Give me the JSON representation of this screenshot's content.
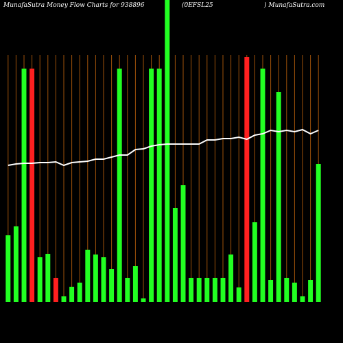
{
  "chart_data": {
    "type": "bar",
    "title": "MunafaSutra  Money Flow  Charts for 938896",
    "subtitle": "(0EFSL25",
    "source": ") MunafaSutra.com",
    "categories": [
      null,
      null,
      null,
      null,
      null,
      null,
      null,
      null,
      null,
      null,
      null,
      null,
      null,
      null,
      null,
      null,
      null,
      null,
      null,
      null,
      null,
      null,
      null,
      null,
      null,
      null,
      null,
      null,
      null,
      null,
      null,
      null,
      null,
      null,
      null,
      null,
      null,
      null,
      null,
      null
    ],
    "ylim": [
      0,
      440
    ],
    "series": [
      {
        "name": "Money Flow",
        "type": "bar",
        "colors": [
          "#22ff22",
          "#22ff22",
          "#22ff22",
          "#ff2020",
          "#22ff22",
          "#22ff22",
          "#ff2020",
          "#22ff22",
          "#22ff22",
          "#22ff22",
          "#22ff22",
          "#22ff22",
          "#22ff22",
          "#22ff22",
          "#22ff22",
          "#22ff22",
          "#22ff22",
          "#22ff22",
          "#22ff22",
          "#22ff22",
          "#22ff22",
          "#22ff22",
          "#22ff22",
          "#22ff22",
          "#22ff22",
          "#22ff22",
          "#22ff22",
          "#22ff22",
          "#22ff22",
          "#22ff22",
          "#ff2020",
          "#22ff22",
          "#22ff22",
          "#22ff22",
          "#22ff22",
          "#22ff22",
          "#22ff22",
          "#22ff22",
          "#22ff22",
          "#22ff22"
        ],
        "values": [
          97,
          110,
          340,
          340,
          65,
          70,
          35,
          8,
          22,
          28,
          76,
          69,
          65,
          48,
          340,
          35,
          52,
          5,
          340,
          340,
          460,
          137,
          170,
          35,
          35,
          35,
          35,
          35,
          69,
          21,
          357,
          116,
          340,
          32,
          306,
          35,
          28,
          8,
          32,
          201
        ]
      },
      {
        "name": "Price",
        "type": "line",
        "color": "#ffffff",
        "values": [
          199,
          201,
          202,
          202,
          203,
          203,
          204,
          199,
          203,
          204,
          205,
          208,
          208,
          211,
          214,
          214,
          222,
          223,
          227,
          229,
          230,
          230,
          230,
          230,
          230,
          236,
          236,
          238,
          238,
          240,
          237,
          243,
          245,
          250,
          248,
          250,
          248,
          251,
          245,
          250
        ]
      }
    ]
  }
}
